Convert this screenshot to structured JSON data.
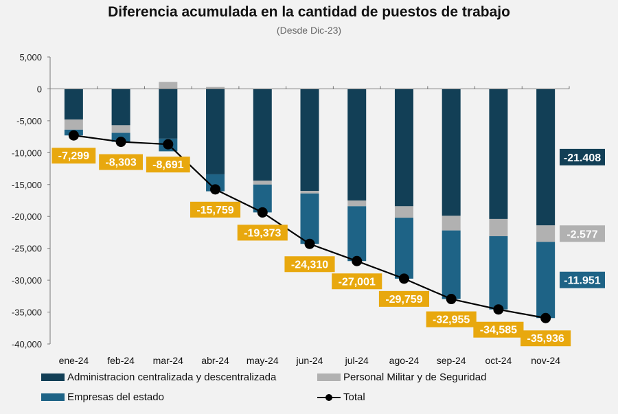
{
  "chart_data": {
    "type": "bar",
    "stacked": true,
    "title": "Diferencia acumulada en la cantidad de puestos de trabajo",
    "subtitle": "(Desde Dic-23)",
    "categories": [
      "ene-24",
      "feb-24",
      "mar-24",
      "abr-24",
      "may-24",
      "jun-24",
      "jul-24",
      "ago-24",
      "sep-24",
      "oct-24",
      "nov-24"
    ],
    "ylim": [
      -40000,
      5000
    ],
    "yticks": [
      5000,
      0,
      -5000,
      -10000,
      -15000,
      -20000,
      -25000,
      -30000,
      -35000,
      -40000
    ],
    "ytick_labels": [
      "5,000",
      "0",
      "-5,000",
      "-10,000",
      "-15,000",
      "-20,000",
      "-25,000",
      "-30,000",
      "-35,000",
      "-40,000"
    ],
    "series": [
      {
        "name": "Administracion centralizada y descentralizada",
        "type": "bar",
        "color": "#123f56",
        "values": [
          -4800,
          -5700,
          -7800,
          -13400,
          -14400,
          -16000,
          -17500,
          -18400,
          -19900,
          -20400,
          -21408
        ]
      },
      {
        "name": "Personal Militar y de Seguridad",
        "type": "bar",
        "color": "#b1b1b1",
        "values": [
          -1600,
          -1200,
          1100,
          300,
          -600,
          -400,
          -900,
          -1800,
          -2300,
          -2700,
          -2577
        ]
      },
      {
        "name": "Empresas del estado",
        "type": "bar",
        "color": "#1e6386",
        "values": [
          -899,
          -1403,
          -1991,
          -2659,
          -4373,
          -7910,
          -8601,
          -9559,
          -10755,
          -11485,
          -11951
        ]
      },
      {
        "name": "Total",
        "type": "line",
        "color": "#000000",
        "values": [
          -7299,
          -8303,
          -8691,
          -15759,
          -19373,
          -24310,
          -27001,
          -29759,
          -32955,
          -34585,
          -35936
        ]
      }
    ],
    "total_labels": [
      "-7,299",
      "-8,303",
      "-8,691",
      "-15,759",
      "-19,373",
      "-24,310",
      "-27,001",
      "-29,759",
      "-32,955",
      "-34,585",
      "-35,936"
    ],
    "last_point_labels": [
      "-21.408",
      "-2.577",
      "-11.951"
    ],
    "label_color": "#e8a80e",
    "legend_position": "bottom",
    "grid": false
  }
}
